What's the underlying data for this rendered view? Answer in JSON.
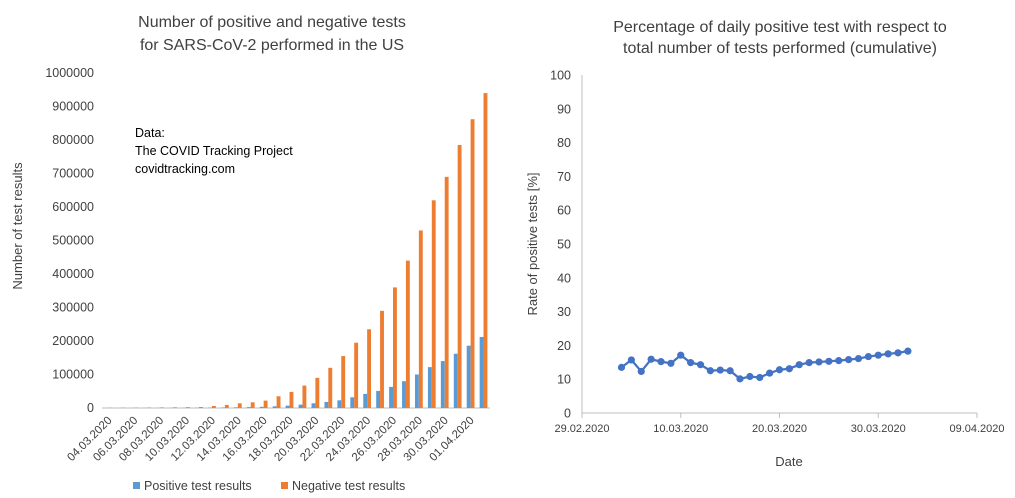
{
  "colors": {
    "positive": "#5b9bd5",
    "negative": "#ed7d31",
    "line": "#4472c4",
    "axis": "#bfbfbf",
    "text": "#404040"
  },
  "chart_data": [
    {
      "type": "bar",
      "title_lines": [
        "Number of positive and negative tests",
        "for SARS-CoV-2 performed in the US"
      ],
      "ylabel": "Number of test results",
      "xlabel": "",
      "ylim": [
        0,
        1000000
      ],
      "yticks": [
        0,
        100000,
        200000,
        300000,
        400000,
        500000,
        600000,
        700000,
        800000,
        900000,
        1000000
      ],
      "annotation_lines": [
        "Data:",
        "The COVID Tracking Project",
        "covidtracking.com"
      ],
      "categories": [
        "04.03.2020",
        "05.03.2020",
        "06.03.2020",
        "07.03.2020",
        "08.03.2020",
        "09.03.2020",
        "10.03.2020",
        "11.03.2020",
        "12.03.2020",
        "13.03.2020",
        "14.03.2020",
        "15.03.2020",
        "16.03.2020",
        "17.03.2020",
        "18.03.2020",
        "19.03.2020",
        "20.03.2020",
        "21.03.2020",
        "22.03.2020",
        "23.03.2020",
        "24.03.2020",
        "25.03.2020",
        "26.03.2020",
        "27.03.2020",
        "28.03.2020",
        "29.03.2020",
        "30.03.2020",
        "31.03.2020",
        "01.04.2020",
        "02.04.2020"
      ],
      "tick_labels": [
        "04.03.2020",
        "06.03.2020",
        "08.03.2020",
        "10.03.2020",
        "12.03.2020",
        "14.03.2020",
        "16.03.2020",
        "18.03.2020",
        "20.03.2020",
        "22.03.2020",
        "24.03.2020",
        "26.03.2020",
        "28.03.2020",
        "30.03.2020",
        "01.04.2020"
      ],
      "series": [
        {
          "name": "Positive test results",
          "values": [
            100,
            150,
            200,
            300,
            400,
            500,
            600,
            700,
            1000,
            1500,
            2000,
            2700,
            3500,
            5000,
            7000,
            10000,
            14000,
            18000,
            23000,
            32000,
            42000,
            51000,
            63000,
            80000,
            100000,
            122000,
            140000,
            162000,
            186000,
            212000
          ]
        },
        {
          "name": "Negative test results",
          "values": [
            900,
            1000,
            1200,
            1500,
            1800,
            2000,
            2500,
            3000,
            6000,
            9000,
            14000,
            17000,
            22000,
            35000,
            48000,
            67000,
            90000,
            120000,
            155000,
            195000,
            235000,
            290000,
            360000,
            440000,
            530000,
            620000,
            690000,
            785000,
            862000,
            940000
          ]
        }
      ]
    },
    {
      "type": "line",
      "title_lines": [
        "Percentage of daily positive test with respect to",
        "total number of tests performed (cumulative)"
      ],
      "ylabel": "Rate of positive tests [%]",
      "xlabel": "Date",
      "ylim": [
        0,
        100
      ],
      "yticks": [
        0,
        10,
        20,
        30,
        40,
        50,
        60,
        70,
        80,
        90,
        100
      ],
      "xlim_days": [
        0,
        40
      ],
      "xtick_days": [
        0,
        10,
        20,
        30,
        40
      ],
      "xtick_labels": [
        "29.02.2020",
        "10.03.2020",
        "20.03.2020",
        "30.03.2020",
        "09.04.2020"
      ],
      "x_days": [
        4,
        5,
        6,
        7,
        8,
        9,
        10,
        11,
        12,
        13,
        14,
        15,
        16,
        17,
        18,
        19,
        20,
        21,
        22,
        23,
        24,
        25,
        26,
        27,
        28,
        29,
        30,
        31,
        32,
        33
      ],
      "values": [
        13.5,
        15.7,
        12.3,
        15.9,
        15.2,
        14.7,
        17.1,
        14.9,
        14.3,
        12.5,
        12.7,
        12.5,
        10.1,
        10.8,
        10.5,
        11.8,
        12.8,
        13.1,
        14.3,
        14.9,
        15.1,
        15.3,
        15.5,
        15.8,
        16.1,
        16.7,
        17.1,
        17.5,
        17.8,
        18.3
      ]
    }
  ]
}
